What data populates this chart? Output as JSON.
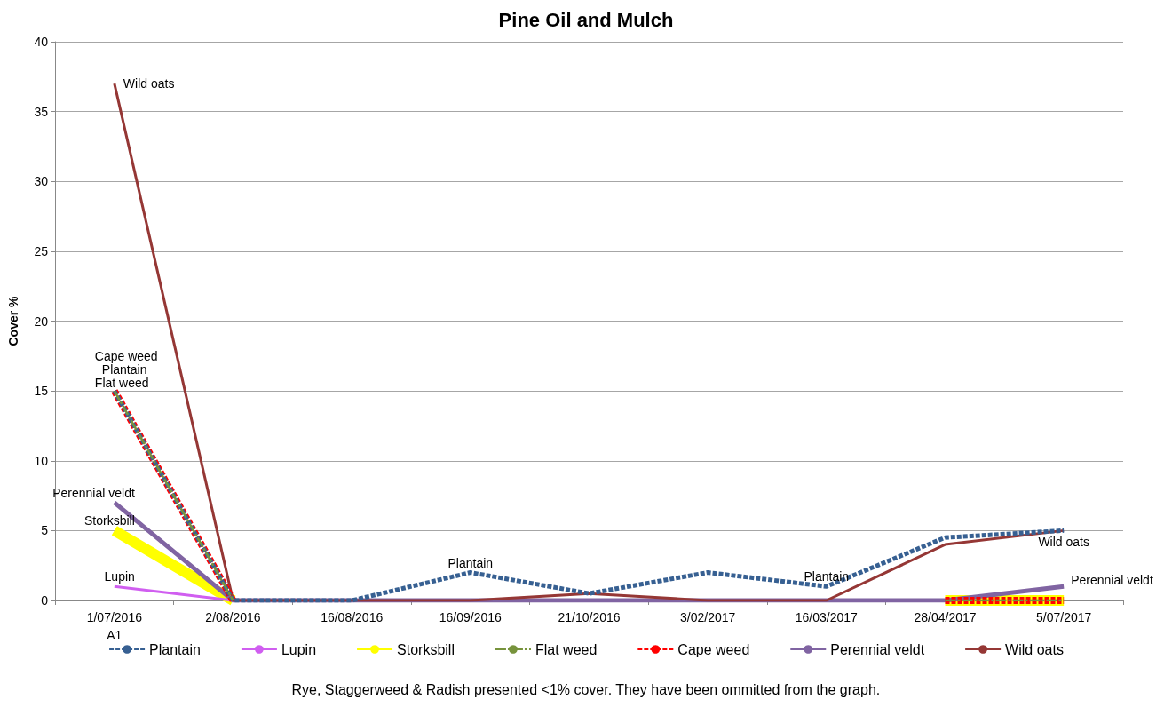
{
  "chart_data": {
    "type": "line",
    "title": "Pine Oil and Mulch",
    "ylabel": "Cover %",
    "categories": [
      "1/07/2016",
      "2/08/2016",
      "16/08/2016",
      "16/09/2016",
      "21/10/2016",
      "3/02/2017",
      "16/03/2017",
      "28/04/2017",
      "5/07/2017"
    ],
    "series": [
      {
        "name": "Plantain",
        "color": "#376092",
        "line_style": "dashed",
        "values": [
          15,
          0,
          0,
          2,
          0.5,
          2,
          1,
          4.5,
          5
        ]
      },
      {
        "name": "Lupin",
        "color": "#d05ef0",
        "line_style": "solid",
        "values": [
          1,
          0,
          null,
          null,
          null,
          null,
          null,
          null,
          null
        ]
      },
      {
        "name": "Storksbill",
        "color": "#ffff00",
        "line_style": "solid",
        "values": [
          5,
          0,
          null,
          null,
          null,
          null,
          null,
          0,
          0
        ]
      },
      {
        "name": "Flat weed",
        "color": "#77933c",
        "line_style": "dashdot",
        "values": [
          15,
          0,
          null,
          null,
          null,
          null,
          null,
          0,
          0
        ]
      },
      {
        "name": "Cape weed",
        "color": "#ff0000",
        "line_style": "dashed",
        "values": [
          15,
          0,
          null,
          null,
          null,
          null,
          null,
          0,
          0
        ]
      },
      {
        "name": "Perennial veldt",
        "color": "#8064a2",
        "line_style": "solid",
        "values": [
          7,
          0,
          0,
          0,
          0,
          0,
          0,
          0,
          1
        ]
      },
      {
        "name": "Wild oats",
        "color": "#953735",
        "line_style": "solid",
        "values": [
          37,
          0,
          0,
          0,
          0.5,
          0,
          0,
          4,
          5
        ]
      }
    ],
    "ylim": [
      0,
      40
    ],
    "yticks": [
      0,
      5,
      10,
      15,
      20,
      25,
      30,
      35,
      40
    ],
    "grid": "y",
    "legend": "bottom",
    "marker": "none",
    "annotations": [
      {
        "text": "Wild oats",
        "x": "1/07/2016",
        "y": 37
      },
      {
        "text": "Cape weed",
        "x": "1/07/2016",
        "y": 15
      },
      {
        "text": "Plantain",
        "x": "1/07/2016",
        "y": 15
      },
      {
        "text": "Flat weed",
        "x": "1/07/2016",
        "y": 15
      },
      {
        "text": "Perennial veldt",
        "x": "1/07/2016",
        "y": 7
      },
      {
        "text": "Storksbill",
        "x": "1/07/2016",
        "y": 5
      },
      {
        "text": "Lupin",
        "x": "1/07/2016",
        "y": 1
      },
      {
        "text": "Plantain",
        "x": "16/09/2016",
        "y": 2
      },
      {
        "text": "Plantain",
        "x": "16/03/2017",
        "y": 1
      },
      {
        "text": "Wild oats",
        "x": "5/07/2017",
        "y": 5
      },
      {
        "text": "Perennial veldt",
        "x": "5/07/2017",
        "y": 1
      },
      "A1",
      "Rye, Staggerweed & Radish presented <1% cover. They have been ommitted from the graph."
    ]
  }
}
